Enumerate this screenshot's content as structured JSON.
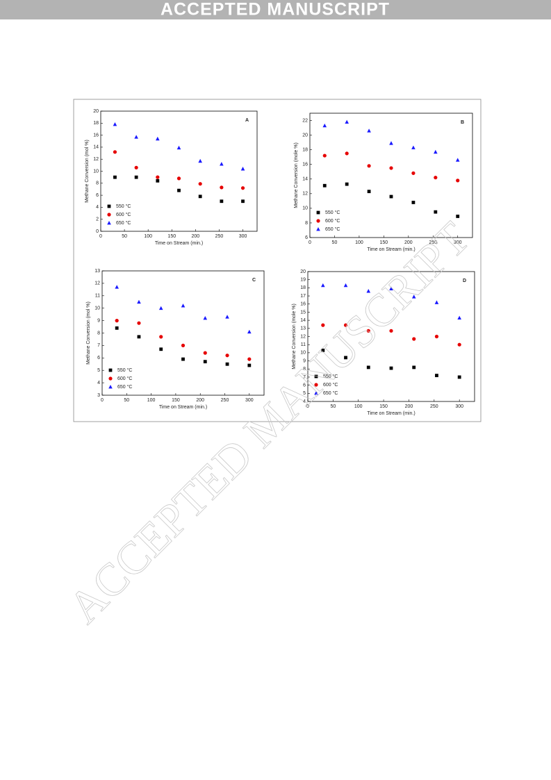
{
  "header": {
    "banner": "ACCEPTED MANUSCRIPT"
  },
  "watermark": "ACCEPTED MANUSCRIPT",
  "chart_data": [
    {
      "type": "scatter",
      "title": "A",
      "x_label": "Time on Stream (min.)",
      "y_label": "Methane Conversion (mol %)",
      "x": [
        30,
        75,
        120,
        165,
        210,
        255,
        300
      ],
      "series": [
        {
          "name": "550 °C",
          "color": "#000000",
          "marker": "square",
          "values": [
            9.0,
            9.0,
            8.4,
            6.8,
            5.8,
            5.0,
            5.0
          ]
        },
        {
          "name": "600 °C",
          "color": "#e60000",
          "marker": "circle",
          "values": [
            13.2,
            10.6,
            9.0,
            8.8,
            7.9,
            7.3,
            7.2
          ]
        },
        {
          "name": "650 °C",
          "color": "#1a1aff",
          "marker": "triangle",
          "values": [
            17.8,
            15.7,
            15.4,
            13.9,
            11.7,
            11.2,
            10.4
          ]
        }
      ],
      "xlim": [
        0,
        330
      ],
      "xticks": [
        0,
        50,
        100,
        150,
        200,
        250,
        300
      ],
      "ylim": [
        0,
        20
      ],
      "yticks": [
        0,
        2,
        4,
        6,
        8,
        10,
        12,
        14,
        16,
        18,
        20
      ],
      "legend": "lower left"
    },
    {
      "type": "scatter",
      "title": "B",
      "x_label": "Time on Stream (min.)",
      "y_label": "Methane Conversion (mole %)",
      "x": [
        30,
        75,
        120,
        165,
        210,
        255,
        300
      ],
      "series": [
        {
          "name": "550 °C",
          "color": "#000000",
          "marker": "square",
          "values": [
            13.1,
            13.3,
            12.3,
            11.6,
            10.8,
            9.5,
            8.9
          ]
        },
        {
          "name": "600 °C",
          "color": "#e60000",
          "marker": "circle",
          "values": [
            17.2,
            17.5,
            15.8,
            15.5,
            14.8,
            14.2,
            13.8
          ]
        },
        {
          "name": "650 °C",
          "color": "#1a1aff",
          "marker": "triangle",
          "values": [
            21.3,
            21.8,
            20.6,
            18.9,
            18.3,
            17.7,
            16.6
          ]
        }
      ],
      "xlim": [
        0,
        330
      ],
      "xticks": [
        0,
        50,
        100,
        150,
        200,
        250,
        300
      ],
      "ylim": [
        6,
        23
      ],
      "yticks": [
        6,
        8,
        10,
        12,
        14,
        16,
        18,
        20,
        22
      ],
      "legend": "lower left"
    },
    {
      "type": "scatter",
      "title": "C",
      "x_label": "Time on Stream (min.)",
      "y_label": "Methane Conversion (mol %)",
      "x": [
        30,
        75,
        120,
        165,
        210,
        255,
        300
      ],
      "series": [
        {
          "name": "550 °C",
          "color": "#000000",
          "marker": "square",
          "values": [
            8.4,
            7.7,
            6.7,
            5.9,
            5.7,
            5.5,
            5.4
          ]
        },
        {
          "name": "600 °C",
          "color": "#e60000",
          "marker": "circle",
          "values": [
            9.0,
            8.8,
            7.7,
            7.0,
            6.4,
            6.2,
            5.9
          ]
        },
        {
          "name": "650 °C",
          "color": "#1a1aff",
          "marker": "triangle",
          "values": [
            11.7,
            10.5,
            10.0,
            10.2,
            9.2,
            9.3,
            8.1
          ]
        }
      ],
      "xlim": [
        0,
        330
      ],
      "xticks": [
        0,
        50,
        100,
        150,
        200,
        250,
        300
      ],
      "ylim": [
        3,
        13
      ],
      "yticks": [
        3,
        4,
        5,
        6,
        7,
        8,
        9,
        10,
        11,
        12,
        13
      ],
      "legend": "lower left"
    },
    {
      "type": "scatter",
      "title": "D",
      "x_label": "Time on Stream (min.)",
      "y_label": "Methane Conversion (mole %)",
      "x": [
        30,
        75,
        120,
        165,
        210,
        255,
        300
      ],
      "series": [
        {
          "name": "550 °C",
          "color": "#000000",
          "marker": "square",
          "values": [
            10.3,
            9.4,
            8.2,
            8.1,
            8.2,
            7.2,
            7.0
          ]
        },
        {
          "name": "600 °C",
          "color": "#e60000",
          "marker": "circle",
          "values": [
            13.4,
            13.4,
            12.7,
            12.7,
            11.7,
            12.0,
            11.0
          ]
        },
        {
          "name": "650 °C",
          "color": "#1a1aff",
          "marker": "triangle",
          "values": [
            18.3,
            18.3,
            17.6,
            17.9,
            16.9,
            16.2,
            14.3
          ]
        }
      ],
      "xlim": [
        0,
        330
      ],
      "xticks": [
        0,
        50,
        100,
        150,
        200,
        250,
        300
      ],
      "ylim": [
        4,
        20
      ],
      "yticks": [
        4,
        5,
        6,
        7,
        8,
        9,
        10,
        11,
        12,
        13,
        14,
        15,
        16,
        17,
        18,
        19,
        20
      ],
      "legend": "lower left"
    }
  ]
}
